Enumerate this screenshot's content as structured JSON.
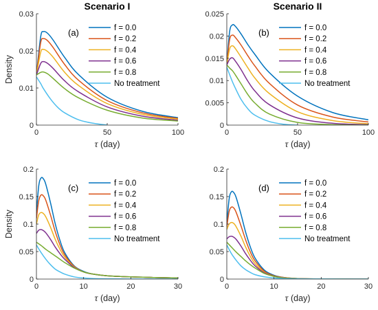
{
  "colors": [
    "#0072BD",
    "#D95319",
    "#EDB120",
    "#7E2F8E",
    "#77AC30",
    "#4DBEEE"
  ],
  "chart_data": [
    {
      "type": "line",
      "title": "Scenario I",
      "panel_label": "(a)",
      "xlabel_symbol": "τ",
      "xlabel_unit": "(day)",
      "ylabel": "Density",
      "xlim": [
        0,
        100
      ],
      "ylim": [
        0,
        0.03
      ],
      "xticks": [
        0,
        50,
        100
      ],
      "yticks": [
        0,
        0.01,
        0.02,
        0.03
      ],
      "xtick_labels": [
        "0",
        "50",
        "100"
      ],
      "ytick_labels": [
        "0",
        "0.01",
        "0.02",
        "0.03"
      ],
      "legend_position": "top-right",
      "series": [
        {
          "name": "f = 0.0",
          "x": [
            0,
            3,
            5,
            8,
            12,
            20,
            30,
            50,
            75,
            100
          ],
          "y": [
            0.0135,
            0.0238,
            0.0252,
            0.0247,
            0.0228,
            0.0182,
            0.0135,
            0.0075,
            0.0037,
            0.002
          ]
        },
        {
          "name": "f = 0.2",
          "x": [
            0,
            3,
            5,
            8,
            12,
            20,
            30,
            50,
            75,
            100
          ],
          "y": [
            0.0135,
            0.0222,
            0.0233,
            0.0227,
            0.0208,
            0.0163,
            0.012,
            0.0066,
            0.0033,
            0.0018
          ]
        },
        {
          "name": "f = 0.4",
          "x": [
            0,
            3,
            5,
            8,
            12,
            20,
            30,
            50,
            75,
            100
          ],
          "y": [
            0.0135,
            0.0196,
            0.0204,
            0.0198,
            0.0182,
            0.0142,
            0.0106,
            0.0058,
            0.0029,
            0.0016
          ]
        },
        {
          "name": "f = 0.6",
          "x": [
            0,
            3,
            5,
            8,
            12,
            20,
            30,
            50,
            75,
            100
          ],
          "y": [
            0.0135,
            0.0166,
            0.0171,
            0.0166,
            0.0152,
            0.0119,
            0.0089,
            0.0049,
            0.0024,
            0.0013
          ]
        },
        {
          "name": "f = 0.8",
          "x": [
            0,
            3,
            5,
            8,
            12,
            20,
            30,
            50,
            75,
            100
          ],
          "y": [
            0.0135,
            0.0142,
            0.0143,
            0.0138,
            0.0125,
            0.0098,
            0.0073,
            0.004,
            0.0019,
            0.0011
          ]
        },
        {
          "name": "No treatment",
          "x": [
            0,
            3,
            5,
            10,
            15,
            20,
            30,
            40,
            50
          ],
          "y": [
            0.013,
            0.0112,
            0.0098,
            0.007,
            0.0048,
            0.0033,
            0.0014,
            0.0005,
            0.0
          ]
        }
      ]
    },
    {
      "type": "line",
      "title": "Scenario II",
      "panel_label": "(b)",
      "xlabel_symbol": "τ",
      "xlabel_unit": "(day)",
      "ylabel": "",
      "xlim": [
        0,
        100
      ],
      "ylim": [
        0,
        0.025
      ],
      "xticks": [
        0,
        50,
        100
      ],
      "yticks": [
        0,
        0.005,
        0.01,
        0.015,
        0.02,
        0.025
      ],
      "xtick_labels": [
        "0",
        "50",
        "100"
      ],
      "ytick_labels": [
        "0",
        "0.005",
        "0.01",
        "0.015",
        "0.02",
        "0.025"
      ],
      "legend_position": "top-right",
      "series": [
        {
          "name": "f = 0.0",
          "x": [
            0,
            2,
            4,
            6,
            10,
            15,
            20,
            30,
            50,
            75,
            100
          ],
          "y": [
            0.0135,
            0.021,
            0.0225,
            0.0222,
            0.0205,
            0.018,
            0.0158,
            0.0118,
            0.0065,
            0.0028,
            0.0012
          ]
        },
        {
          "name": "f = 0.2",
          "x": [
            0,
            2,
            4,
            6,
            10,
            15,
            20,
            30,
            50,
            75,
            100
          ],
          "y": [
            0.0135,
            0.0192,
            0.0202,
            0.0197,
            0.018,
            0.0155,
            0.0132,
            0.0094,
            0.0045,
            0.0018,
            0.0007
          ]
        },
        {
          "name": "f = 0.4",
          "x": [
            0,
            2,
            4,
            6,
            10,
            15,
            20,
            30,
            50,
            75,
            100
          ],
          "y": [
            0.0135,
            0.0171,
            0.0178,
            0.0172,
            0.0153,
            0.0128,
            0.0105,
            0.0071,
            0.003,
            0.001,
            0.0003
          ]
        },
        {
          "name": "f = 0.6",
          "x": [
            0,
            2,
            4,
            6,
            10,
            15,
            20,
            30,
            50,
            75,
            100
          ],
          "y": [
            0.0135,
            0.0148,
            0.0151,
            0.0144,
            0.0125,
            0.0098,
            0.0076,
            0.0046,
            0.0016,
            0.0004,
            0.0001
          ]
        },
        {
          "name": "f = 0.8",
          "x": [
            0,
            2,
            4,
            6,
            10,
            15,
            20,
            30,
            50,
            75,
            100
          ],
          "y": [
            0.0135,
            0.0128,
            0.0122,
            0.0113,
            0.0093,
            0.0068,
            0.0049,
            0.0025,
            0.0006,
            0.0001,
            0.0
          ]
        },
        {
          "name": "No treatment",
          "x": [
            0,
            3,
            5,
            10,
            15,
            20,
            30,
            40,
            50
          ],
          "y": [
            0.013,
            0.0105,
            0.009,
            0.0058,
            0.0036,
            0.0022,
            0.0008,
            0.0002,
            0.0
          ]
        }
      ]
    },
    {
      "type": "line",
      "title": "",
      "panel_label": "(c)",
      "xlabel_symbol": "τ",
      "xlabel_unit": "(day)",
      "ylabel": "Density",
      "xlim": [
        0,
        30
      ],
      "ylim": [
        0,
        0.2
      ],
      "xticks": [
        0,
        10,
        20,
        30
      ],
      "yticks": [
        0,
        0.05,
        0.1,
        0.15,
        0.2
      ],
      "xtick_labels": [
        "0",
        "10",
        "20",
        "30"
      ],
      "ytick_labels": [
        "0",
        "0.05",
        "0.1",
        "0.15",
        "0.2"
      ],
      "legend_position": "top-right",
      "series": [
        {
          "name": "f = 0.0",
          "x": [
            0,
            0.5,
            1,
            1.5,
            2,
            3,
            4,
            5,
            6,
            8,
            10,
            12,
            15,
            20,
            25,
            30
          ],
          "y": [
            0.12,
            0.17,
            0.184,
            0.182,
            0.172,
            0.138,
            0.1,
            0.07,
            0.048,
            0.024,
            0.014,
            0.009,
            0.006,
            0.004,
            0.0028,
            0.002
          ]
        },
        {
          "name": "f = 0.2",
          "x": [
            0,
            0.5,
            1,
            1.5,
            2,
            3,
            4,
            5,
            6,
            8,
            10,
            12,
            15,
            20,
            25,
            30
          ],
          "y": [
            0.11,
            0.143,
            0.153,
            0.151,
            0.143,
            0.116,
            0.086,
            0.062,
            0.044,
            0.023,
            0.013,
            0.009,
            0.006,
            0.004,
            0.0028,
            0.002
          ]
        },
        {
          "name": "f = 0.4",
          "x": [
            0,
            0.5,
            1,
            1.5,
            2,
            3,
            4,
            5,
            6,
            8,
            10,
            12,
            15,
            20,
            25,
            30
          ],
          "y": [
            0.1,
            0.117,
            0.121,
            0.119,
            0.113,
            0.094,
            0.072,
            0.054,
            0.04,
            0.022,
            0.013,
            0.009,
            0.006,
            0.004,
            0.0028,
            0.002
          ]
        },
        {
          "name": "f = 0.6",
          "x": [
            0,
            0.5,
            1,
            1.5,
            2,
            3,
            4,
            5,
            6,
            8,
            10,
            12,
            15,
            20,
            25,
            30
          ],
          "y": [
            0.083,
            0.089,
            0.09,
            0.088,
            0.084,
            0.072,
            0.058,
            0.046,
            0.036,
            0.021,
            0.013,
            0.009,
            0.006,
            0.004,
            0.0028,
            0.002
          ]
        },
        {
          "name": "f = 0.8",
          "x": [
            0,
            1,
            2,
            3,
            4,
            5,
            6,
            8,
            10,
            12,
            15,
            20,
            25,
            30
          ],
          "y": [
            0.067,
            0.061,
            0.054,
            0.048,
            0.042,
            0.036,
            0.03,
            0.02,
            0.013,
            0.009,
            0.006,
            0.004,
            0.0028,
            0.002
          ]
        },
        {
          "name": "No treatment",
          "x": [
            0,
            1,
            2,
            3,
            4,
            5,
            6,
            8,
            10,
            12,
            15,
            20,
            30
          ],
          "y": [
            0.062,
            0.048,
            0.036,
            0.026,
            0.018,
            0.013,
            0.009,
            0.004,
            0.002,
            0.001,
            0.0005,
            0.0002,
            0.0
          ]
        }
      ]
    },
    {
      "type": "line",
      "title": "",
      "panel_label": "(d)",
      "xlabel_symbol": "τ",
      "xlabel_unit": "(day)",
      "ylabel": "",
      "xlim": [
        0,
        30
      ],
      "ylim": [
        0,
        0.2
      ],
      "xticks": [
        0,
        10,
        20,
        30
      ],
      "yticks": [
        0,
        0.05,
        0.1,
        0.15,
        0.2
      ],
      "xtick_labels": [
        "0",
        "10",
        "20",
        "30"
      ],
      "ytick_labels": [
        "0",
        "0.05",
        "0.1",
        "0.15",
        "0.2"
      ],
      "legend_position": "top-right",
      "series": [
        {
          "name": "f = 0.0",
          "x": [
            0,
            0.5,
            1,
            1.5,
            2,
            3,
            4,
            5,
            6,
            8,
            10,
            12,
            15,
            20,
            25,
            30
          ],
          "y": [
            0.1,
            0.146,
            0.159,
            0.157,
            0.148,
            0.118,
            0.085,
            0.058,
            0.038,
            0.016,
            0.007,
            0.003,
            0.001,
            0.0003,
            0.0001,
            0.0
          ]
        },
        {
          "name": "f = 0.2",
          "x": [
            0,
            0.5,
            1,
            1.5,
            2,
            3,
            4,
            5,
            6,
            8,
            10,
            12,
            15,
            20,
            25,
            30
          ],
          "y": [
            0.095,
            0.123,
            0.131,
            0.129,
            0.121,
            0.097,
            0.071,
            0.049,
            0.033,
            0.014,
            0.006,
            0.003,
            0.001,
            0.0003,
            0.0001,
            0.0
          ]
        },
        {
          "name": "f = 0.4",
          "x": [
            0,
            0.5,
            1,
            1.5,
            2,
            3,
            4,
            5,
            6,
            8,
            10,
            12,
            15,
            20,
            25,
            30
          ],
          "y": [
            0.09,
            0.1,
            0.103,
            0.101,
            0.095,
            0.078,
            0.058,
            0.041,
            0.028,
            0.012,
            0.005,
            0.0025,
            0.001,
            0.0003,
            0.0001,
            0.0
          ]
        },
        {
          "name": "f = 0.6",
          "x": [
            0,
            0.5,
            1,
            1.5,
            2,
            3,
            4,
            5,
            6,
            8,
            10,
            12,
            15,
            20,
            25,
            30
          ],
          "y": [
            0.073,
            0.077,
            0.078,
            0.076,
            0.072,
            0.06,
            0.046,
            0.034,
            0.024,
            0.011,
            0.005,
            0.0022,
            0.0008,
            0.0002,
            0.0001,
            0.0
          ]
        },
        {
          "name": "f = 0.8",
          "x": [
            0,
            1,
            2,
            3,
            4,
            5,
            6,
            8,
            10,
            12,
            15,
            20,
            25,
            30
          ],
          "y": [
            0.067,
            0.058,
            0.049,
            0.041,
            0.033,
            0.026,
            0.02,
            0.01,
            0.005,
            0.002,
            0.0008,
            0.0002,
            0.0001,
            0.0
          ]
        },
        {
          "name": "No treatment",
          "x": [
            0,
            1,
            2,
            3,
            4,
            5,
            6,
            8,
            10,
            12,
            15,
            20,
            30
          ],
          "y": [
            0.062,
            0.046,
            0.034,
            0.024,
            0.017,
            0.012,
            0.008,
            0.004,
            0.002,
            0.001,
            0.0004,
            0.0001,
            0.0
          ]
        }
      ]
    }
  ]
}
